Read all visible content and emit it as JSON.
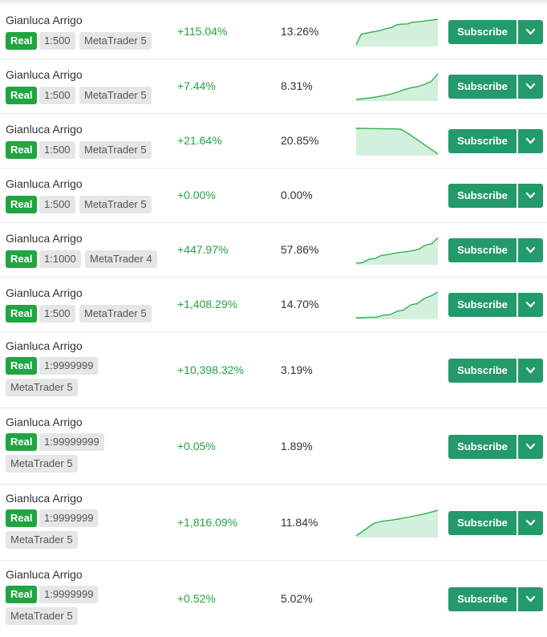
{
  "colors": {
    "growth_green": "#21a540",
    "real_badge": "#21a540",
    "button_green": "#239a6c",
    "tag_gray": "#e6e6e6",
    "spark_line": "#2fb24e",
    "spark_fill": "#d3f0dc"
  },
  "icons": {
    "dropdown": "chevron-down-icon"
  },
  "signals": [
    {
      "owner": "Gianluca Arrigo",
      "account_type": "Real",
      "leverage": "1:500",
      "platform": "MetaTrader 5",
      "growth": "+115.04%",
      "drawdown": "13.26%",
      "subscribe_label": "Subscribe",
      "wrap": false,
      "spark": [
        0,
        0.42,
        0.46,
        0.5,
        0.53,
        0.58,
        0.64,
        0.68,
        0.79,
        0.81,
        0.82,
        0.88,
        0.9,
        0.92,
        0.95,
        0.97,
        1.0
      ]
    },
    {
      "owner": "Gianluca Arrigo",
      "account_type": "Real",
      "leverage": "1:500",
      "platform": "MetaTrader 5",
      "growth": "+7.44%",
      "drawdown": "8.31%",
      "subscribe_label": "Subscribe",
      "wrap": false,
      "spark": [
        0,
        0.03,
        0.06,
        0.1,
        0.15,
        0.2,
        0.28,
        0.38,
        0.45,
        0.5,
        0.58,
        0.7,
        1.0
      ]
    },
    {
      "owner": "Gianluca Arrigo",
      "account_type": "Real",
      "leverage": "1:500",
      "platform": "MetaTrader 5",
      "growth": "+21.64%",
      "drawdown": "20.85%",
      "subscribe_label": "Subscribe",
      "wrap": false,
      "spark": [
        1.0,
        1.0,
        0.99,
        0.99,
        0.98,
        0.98,
        0.97,
        0.8,
        0.6,
        0.4,
        0.2,
        0.0
      ]
    },
    {
      "owner": "Gianluca Arrigo",
      "account_type": "Real",
      "leverage": "1:500",
      "platform": "MetaTrader 5",
      "growth": "+0.00%",
      "drawdown": "0.00%",
      "subscribe_label": "Subscribe",
      "wrap": false,
      "spark": []
    },
    {
      "owner": "Gianluca Arrigo",
      "account_type": "Real",
      "leverage": "1:1000",
      "platform": "MetaTrader 4",
      "growth": "+447.97%",
      "drawdown": "57.86%",
      "subscribe_label": "Subscribe",
      "wrap": false,
      "spark": [
        0,
        0.02,
        0.15,
        0.18,
        0.3,
        0.33,
        0.38,
        0.42,
        0.45,
        0.48,
        0.55,
        0.7,
        0.75,
        1.0
      ]
    },
    {
      "owner": "Gianluca Arrigo",
      "account_type": "Real",
      "leverage": "1:500",
      "platform": "MetaTrader 5",
      "growth": "+1,408.29%",
      "drawdown": "14.70%",
      "subscribe_label": "Subscribe",
      "wrap": false,
      "spark": [
        0,
        0.0,
        0.02,
        0.02,
        0.1,
        0.12,
        0.25,
        0.3,
        0.5,
        0.55,
        0.75,
        0.85,
        1.0
      ]
    },
    {
      "owner": "Gianluca Arrigo",
      "account_type": "Real",
      "leverage": "1:9999999",
      "platform": "MetaTrader 5",
      "growth": "+10,398.32%",
      "drawdown": "3.19%",
      "subscribe_label": "Subscribe",
      "wrap": true,
      "spark": []
    },
    {
      "owner": "Gianluca Arrigo",
      "account_type": "Real",
      "leverage": "1:99999999",
      "platform": "MetaTrader 5",
      "growth": "+0.05%",
      "drawdown": "1.89%",
      "subscribe_label": "Subscribe",
      "wrap": true,
      "spark": []
    },
    {
      "owner": "Gianluca Arrigo",
      "account_type": "Real",
      "leverage": "1:9999999",
      "platform": "MetaTrader 5",
      "growth": "+1,816.09%",
      "drawdown": "11.84%",
      "subscribe_label": "Subscribe",
      "wrap": true,
      "spark": [
        0,
        0.25,
        0.5,
        0.58,
        0.62,
        0.68,
        0.75,
        0.82,
        0.9,
        1.0
      ]
    },
    {
      "owner": "Gianluca Arrigo",
      "account_type": "Real",
      "leverage": "1:9999999",
      "platform": "MetaTrader 5",
      "growth": "+0.52%",
      "drawdown": "5.02%",
      "subscribe_label": "Subscribe",
      "wrap": true,
      "spark": []
    }
  ]
}
